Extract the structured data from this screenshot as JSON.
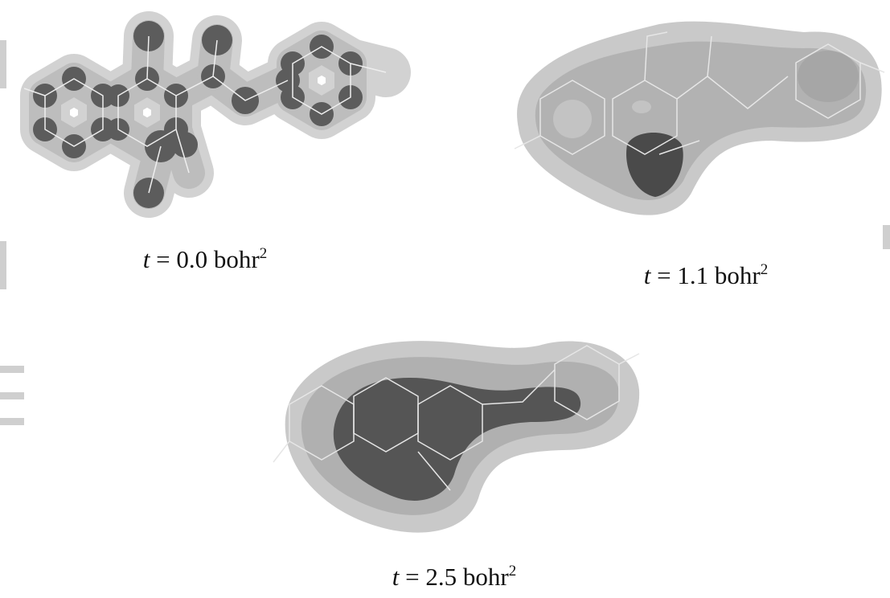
{
  "panels": [
    {
      "caption": {
        "variable": "t",
        "text": " = 0.0 bohr",
        "exponent": "2"
      }
    },
    {
      "caption": {
        "variable": "t",
        "text": " = 1.1 bohr",
        "exponent": "2"
      }
    },
    {
      "caption": {
        "variable": "t",
        "text": " = 2.5 bohr",
        "exponent": "2"
      }
    }
  ]
}
